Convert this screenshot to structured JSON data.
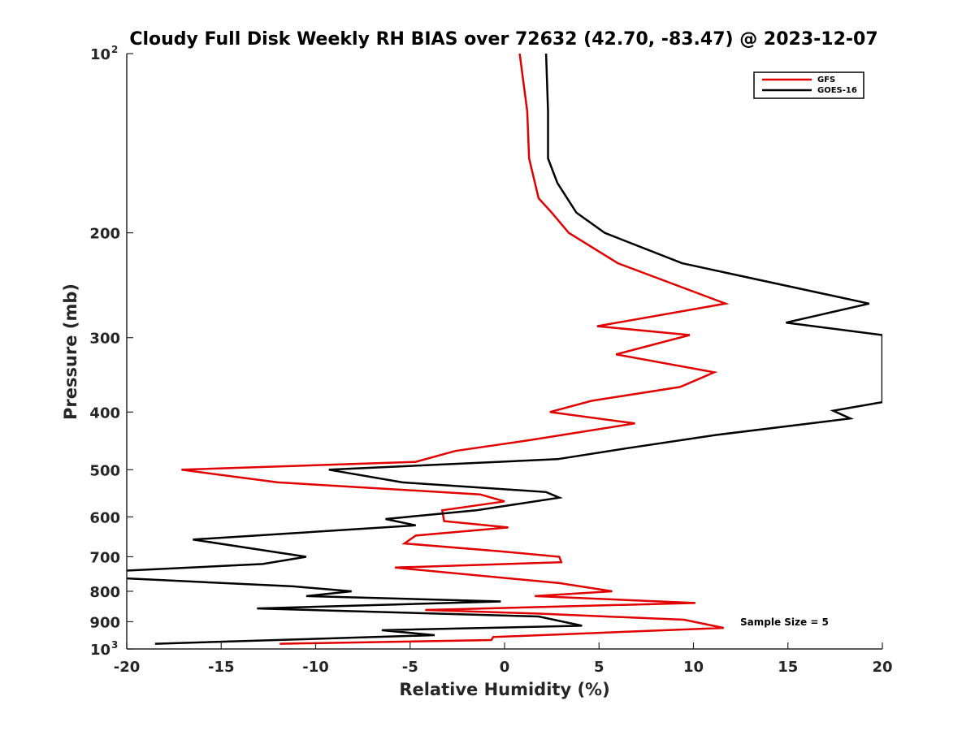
{
  "chart_data": {
    "type": "line",
    "title": "Cloudy Full Disk Weekly RH BIAS over 72632 (42.70, -83.47) @ 2023-12-07",
    "xlabel": "Relative Humidity (%)",
    "ylabel": "Pressure (mb)",
    "xlim": [
      -20,
      20
    ],
    "ylim": [
      100,
      1000
    ],
    "yscale": "log",
    "y_reversed": true,
    "grid": false,
    "legend_position": "top-right",
    "x_ticks": [
      -20,
      -15,
      -10,
      -5,
      0,
      5,
      10,
      15,
      20
    ],
    "x_tick_labels": [
      "-20",
      "-15",
      "-10",
      "-5",
      "0",
      "5",
      "10",
      "15",
      "20"
    ],
    "y_ticks": [
      100,
      200,
      300,
      400,
      500,
      600,
      700,
      800,
      900,
      1000
    ],
    "y_tick_labels": [
      {
        "base": "10",
        "exp": "2"
      },
      {
        "base": "200",
        "exp": ""
      },
      {
        "base": "300",
        "exp": ""
      },
      {
        "base": "400",
        "exp": ""
      },
      {
        "base": "500",
        "exp": ""
      },
      {
        "base": "600",
        "exp": ""
      },
      {
        "base": "700",
        "exp": ""
      },
      {
        "base": "800",
        "exp": ""
      },
      {
        "base": "900",
        "exp": ""
      },
      {
        "base": "10",
        "exp": "3"
      }
    ],
    "annotation": "Sample Size = 5",
    "series": [
      {
        "name": "GFS",
        "color": "#e00000",
        "points": [
          [
            0.8,
            100
          ],
          [
            1.2,
            125
          ],
          [
            1.3,
            150
          ],
          [
            1.8,
            175
          ],
          [
            2.5,
            185
          ],
          [
            3.4,
            200
          ],
          [
            6,
            225
          ],
          [
            11.7,
            263
          ],
          [
            4.9,
            287
          ],
          [
            9.8,
            297
          ],
          [
            5.9,
            320
          ],
          [
            11.1,
            343
          ],
          [
            9.3,
            363
          ],
          [
            4.6,
            383
          ],
          [
            2.4,
            400
          ],
          [
            6.9,
            418
          ],
          [
            1.3,
            446
          ],
          [
            -2.6,
            465
          ],
          [
            -4.7,
            485
          ],
          [
            -17.1,
            500
          ],
          [
            -12,
            525
          ],
          [
            -1.3,
            550
          ],
          [
            0,
            565
          ],
          [
            -3.3,
            585
          ],
          [
            -3.2,
            610
          ],
          [
            0.2,
            625
          ],
          [
            -4.7,
            645
          ],
          [
            -5.3,
            665
          ],
          [
            -0.3,
            685
          ],
          [
            2.9,
            700
          ],
          [
            3,
            715
          ],
          [
            -5.8,
            730
          ],
          [
            2.9,
            775
          ],
          [
            5.7,
            800
          ],
          [
            1.6,
            815
          ],
          [
            10.1,
            837
          ],
          [
            -4.2,
            860
          ],
          [
            1.7,
            872
          ],
          [
            9.5,
            893
          ],
          [
            11.6,
            922
          ],
          [
            -0.6,
            955
          ],
          [
            -0.7,
            966
          ],
          [
            -11.9,
            980
          ]
        ]
      },
      {
        "name": "GOES-16",
        "color": "#000000",
        "points": [
          [
            2.2,
            100
          ],
          [
            2.3,
            125
          ],
          [
            2.3,
            150
          ],
          [
            2.8,
            165
          ],
          [
            3.8,
            185
          ],
          [
            5.3,
            200
          ],
          [
            9.4,
            225
          ],
          [
            19.3,
            263
          ],
          [
            14.9,
            283
          ],
          [
            20,
            297
          ],
          [
            20,
            385
          ],
          [
            17.4,
            398
          ],
          [
            18.3,
            410
          ],
          [
            11.2,
            437
          ],
          [
            6.5,
            460
          ],
          [
            2.8,
            480
          ],
          [
            -9.3,
            500
          ],
          [
            -5.4,
            525
          ],
          [
            2.2,
            545
          ],
          [
            2.9,
            557
          ],
          [
            -1.5,
            585
          ],
          [
            -6.3,
            605
          ],
          [
            -4.7,
            620
          ],
          [
            -16.5,
            655
          ],
          [
            -10.5,
            700
          ],
          [
            -12.8,
            720
          ],
          [
            -20.5,
            740
          ],
          [
            -20.5,
            760
          ],
          [
            -11.2,
            785
          ],
          [
            -8.1,
            800
          ],
          [
            -10.5,
            815
          ],
          [
            -0.2,
            832
          ],
          [
            -13.1,
            855
          ],
          [
            1.8,
            882
          ],
          [
            4.1,
            914
          ],
          [
            -6.5,
            930
          ],
          [
            -3.7,
            948
          ],
          [
            -18.5,
            980
          ]
        ]
      }
    ]
  }
}
